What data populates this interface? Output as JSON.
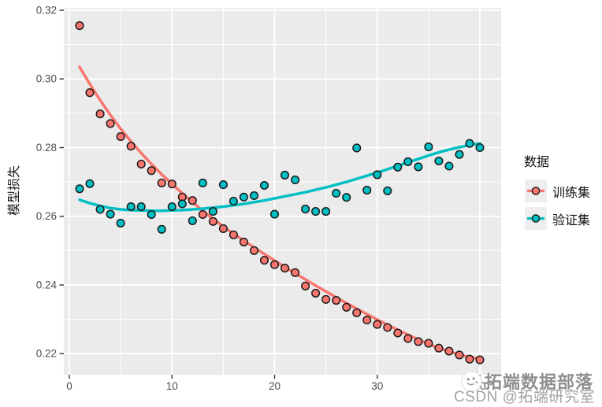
{
  "chart_data": {
    "type": "scatter",
    "title": "",
    "xlabel": "",
    "ylabel": "模型损失",
    "x_ticks": [
      0,
      10,
      20,
      30,
      40
    ],
    "y_ticks": [
      0.32,
      0.3,
      0.28,
      0.26,
      0.24,
      0.22
    ],
    "xlim": [
      -0.5,
      42
    ],
    "ylim": [
      0.214,
      0.321
    ],
    "grid": "on",
    "panel_bg": "#EBEBEB",
    "grid_color": "#FFFFFF",
    "legend": {
      "title": "数据",
      "position": "right"
    },
    "x": [
      1,
      2,
      3,
      4,
      5,
      6,
      7,
      8,
      9,
      10,
      11,
      12,
      13,
      14,
      15,
      16,
      17,
      18,
      19,
      20,
      21,
      22,
      23,
      24,
      25,
      26,
      27,
      28,
      29,
      30,
      31,
      32,
      33,
      34,
      35,
      36,
      37,
      38,
      39,
      40
    ],
    "series": [
      {
        "id": "train",
        "name": "训练集",
        "color": "#F8766D",
        "points": [
          0.3155,
          0.296,
          0.2898,
          0.287,
          0.2832,
          0.2804,
          0.2752,
          0.2733,
          0.2697,
          0.2694,
          0.2656,
          0.2646,
          0.2605,
          0.2585,
          0.2564,
          0.2546,
          0.2525,
          0.25,
          0.2472,
          0.2459,
          0.2449,
          0.2436,
          0.2397,
          0.2376,
          0.2358,
          0.2355,
          0.2335,
          0.2319,
          0.2298,
          0.2285,
          0.2276,
          0.226,
          0.2244,
          0.2235,
          0.223,
          0.2216,
          0.2207,
          0.2196,
          0.2184,
          0.2182
        ],
        "smooth": [
          0.3035,
          0.2985,
          0.2938,
          0.2895,
          0.2855,
          0.2818,
          0.2784,
          0.2752,
          0.2722,
          0.2694,
          0.2667,
          0.2641,
          0.2616,
          0.2592,
          0.257,
          0.2549,
          0.2529,
          0.2509,
          0.249,
          0.2471,
          0.2452,
          0.2434,
          0.2416,
          0.2398,
          0.2381,
          0.2364,
          0.2347,
          0.2331,
          0.2315,
          0.2299,
          0.2284,
          0.2269,
          0.2255,
          0.2241,
          0.2228,
          0.2216,
          0.2206,
          0.2197,
          0.219,
          0.2185
        ]
      },
      {
        "id": "valid",
        "name": "验证集",
        "color": "#00BFC4",
        "points": [
          0.268,
          0.2695,
          0.262,
          0.2606,
          0.258,
          0.2628,
          0.2628,
          0.2605,
          0.2562,
          0.2628,
          0.2636,
          0.2587,
          0.2697,
          0.2614,
          0.2692,
          0.2644,
          0.2656,
          0.266,
          0.269,
          0.2606,
          0.272,
          0.2706,
          0.2621,
          0.2614,
          0.2614,
          0.2667,
          0.2655,
          0.2799,
          0.2676,
          0.2721,
          0.2674,
          0.2743,
          0.2759,
          0.2744,
          0.2802,
          0.2761,
          0.2746,
          0.278,
          0.2812,
          0.28
        ],
        "smooth": [
          0.2648,
          0.2638,
          0.263,
          0.2624,
          0.262,
          0.2618,
          0.2617,
          0.2616,
          0.2616,
          0.2617,
          0.2618,
          0.262,
          0.2622,
          0.2625,
          0.2628,
          0.2632,
          0.2636,
          0.2641,
          0.2646,
          0.2652,
          0.2658,
          0.2664,
          0.267,
          0.2677,
          0.2684,
          0.2692,
          0.27,
          0.2709,
          0.2718,
          0.2727,
          0.2737,
          0.2747,
          0.2757,
          0.2767,
          0.2777,
          0.2786,
          0.2794,
          0.2801,
          0.2807,
          0.2812
        ]
      }
    ]
  },
  "watermark": {
    "brand": "拓端数据部落",
    "credit": "CSDN @拓端研究室"
  }
}
